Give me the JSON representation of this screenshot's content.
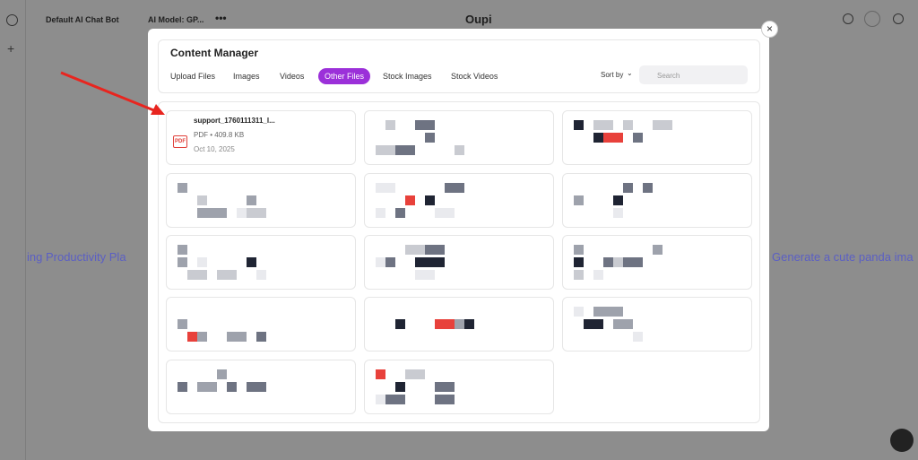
{
  "topbar": {
    "bot": "Default AI Chat Bot",
    "model": "AI Model: GP...",
    "brand": "Oupi"
  },
  "background": {
    "left_text": "ing Productivity Pla",
    "right_text": "Generate a cute panda ima"
  },
  "modal": {
    "title": "Content Manager",
    "tabs": [
      "Upload Files",
      "Images",
      "Videos",
      "Other Files",
      "Stock Images",
      "Stock Videos"
    ],
    "sort_label": "Sort by",
    "search_placeholder": "Search",
    "file": {
      "icon": "PDF",
      "name": "support_1760111311_l...",
      "meta": "PDF • 409.8 KB",
      "date": "Oct 10, 2025"
    }
  }
}
